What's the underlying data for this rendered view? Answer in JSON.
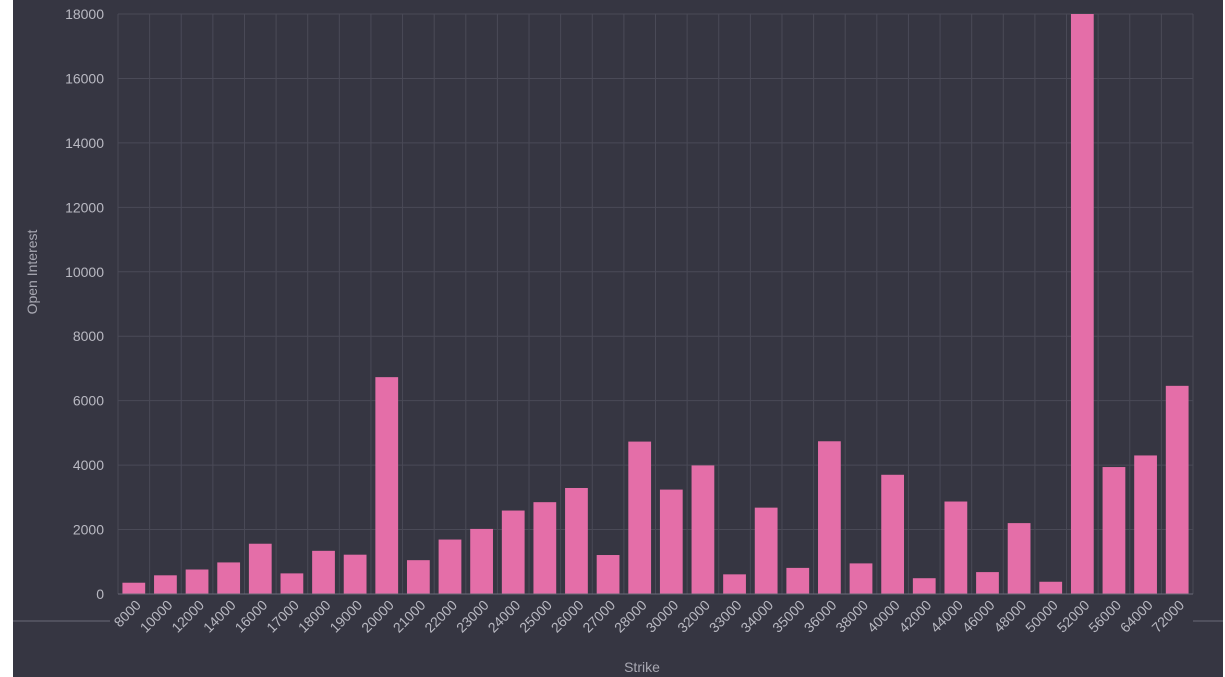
{
  "chart_data": {
    "type": "bar",
    "title": "",
    "xlabel": "Strike",
    "ylabel": "Open Interest",
    "ylim": [
      0,
      18000
    ],
    "yticks": [
      0,
      2000,
      4000,
      6000,
      8000,
      10000,
      12000,
      14000,
      16000,
      18000
    ],
    "grid": true,
    "legend": "none",
    "categories": [
      "8000",
      "10000",
      "12000",
      "14000",
      "16000",
      "17000",
      "18000",
      "19000",
      "20000",
      "21000",
      "22000",
      "23000",
      "24000",
      "25000",
      "26000",
      "27000",
      "28000",
      "30000",
      "32000",
      "33000",
      "34000",
      "35000",
      "36000",
      "38000",
      "40000",
      "42000",
      "44000",
      "46000",
      "48000",
      "50000",
      "52000",
      "56000",
      "64000",
      "72000"
    ],
    "series": [
      {
        "values": [
          350,
          580,
          760,
          980,
          1560,
          640,
          1340,
          1220,
          6730,
          1050,
          1690,
          2020,
          2590,
          2850,
          3290,
          1210,
          4730,
          3240,
          3990,
          610,
          2680,
          810,
          4740,
          950,
          3700,
          490,
          2870,
          680,
          2200,
          380,
          18000,
          3940,
          4300,
          6460
        ]
      }
    ],
    "colors": {
      "background": "#363642",
      "bar": "#e46ea8",
      "grid": "#4a4a57",
      "axis": "#6a6a78",
      "text": "#b9b9c2"
    }
  }
}
